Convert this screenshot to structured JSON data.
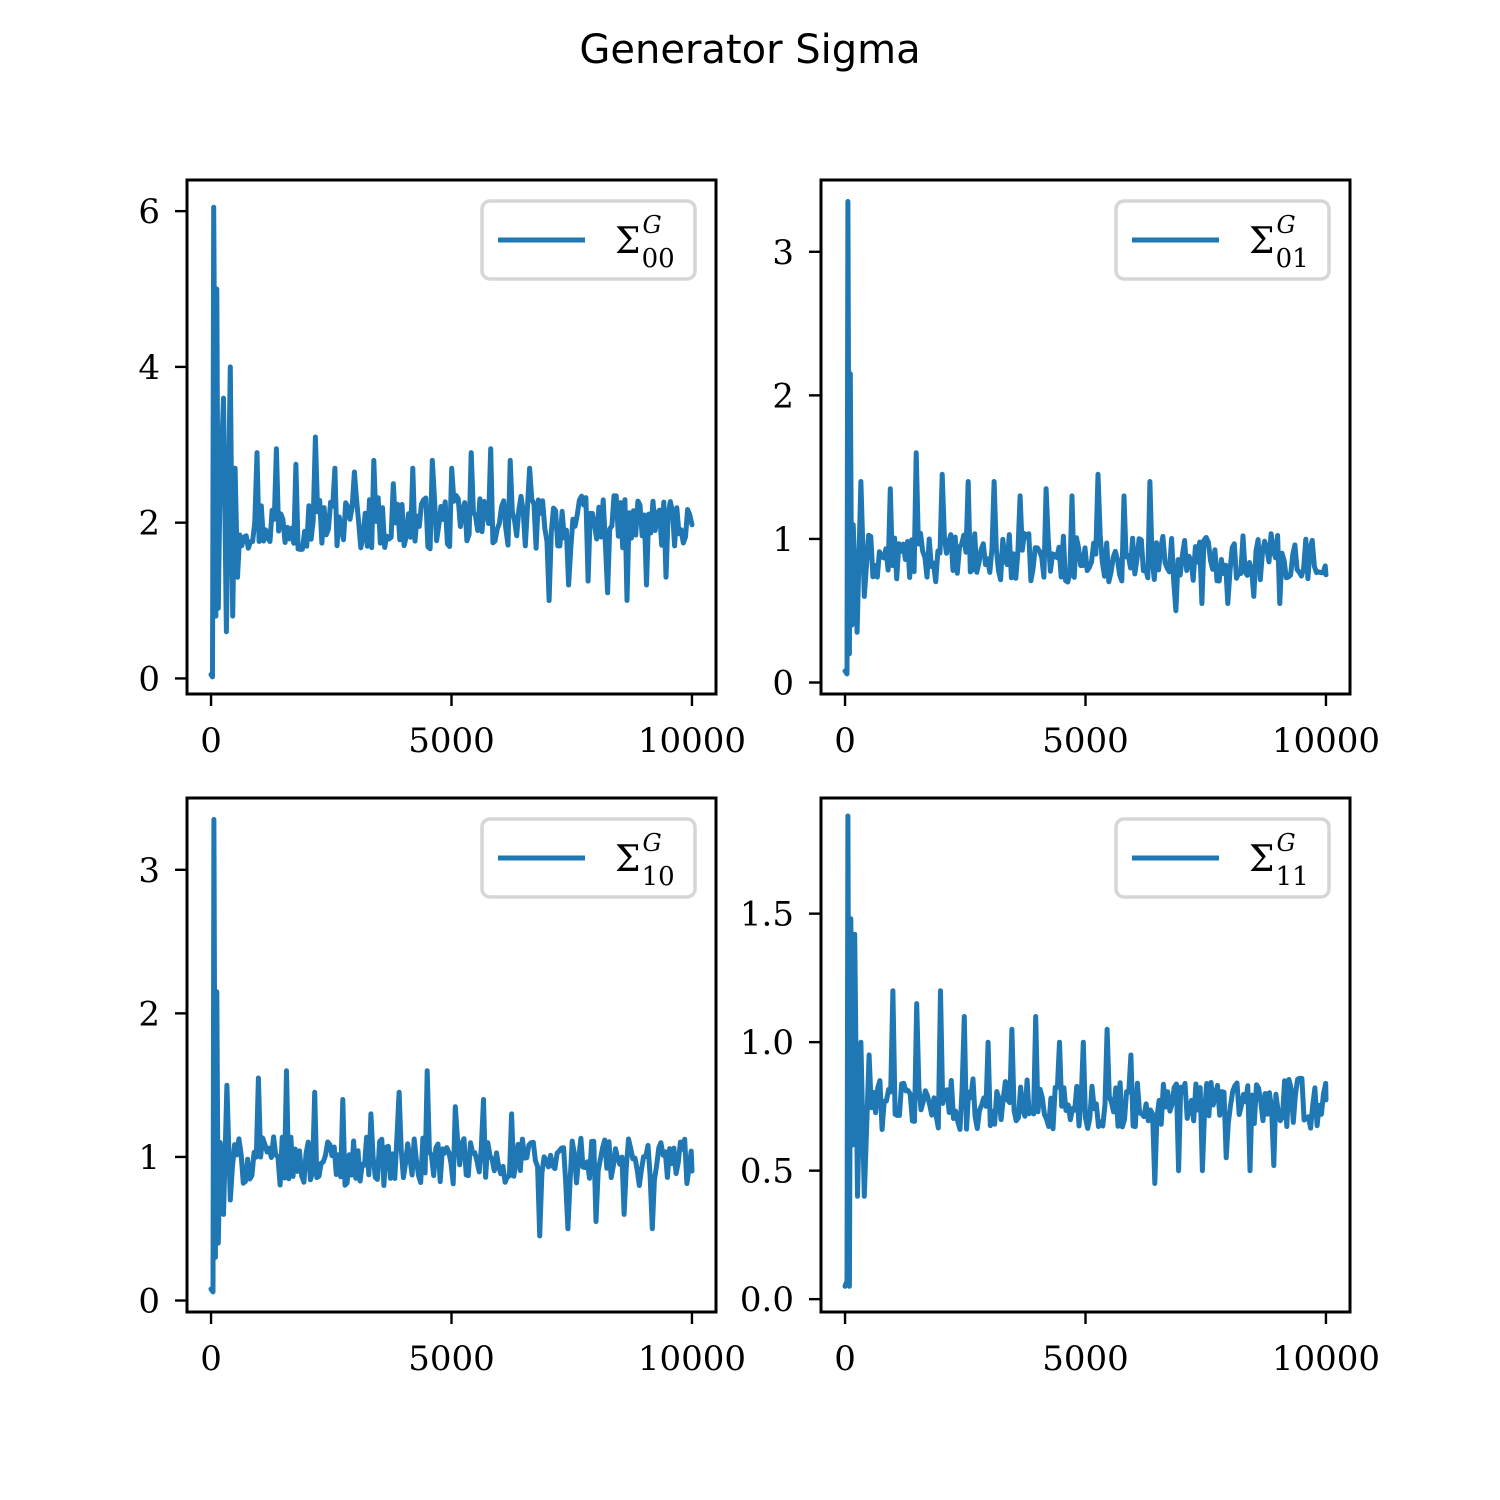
{
  "figure": {
    "title": "Generator Sigma",
    "colors": {
      "line": "#1f77b4"
    }
  },
  "chart_data": [
    {
      "type": "line",
      "legend": {
        "symbol": "Σ",
        "superscript": "G",
        "subscript": "00",
        "location": "upper-right"
      },
      "series": [
        {
          "name": "Σ_00^G"
        }
      ],
      "xlim": [
        -500,
        10500
      ],
      "ylim": [
        -0.2,
        6.4
      ],
      "xticks": [
        0,
        5000,
        10000
      ],
      "xtick_labels": [
        "0",
        "5000",
        "10000"
      ],
      "yticks": [
        0,
        2,
        4,
        6
      ],
      "ytick_labels": [
        "0",
        "2",
        "4",
        "6"
      ],
      "grid": false,
      "profile": {
        "x_start": 0,
        "x_end": 10000,
        "peaks": [
          [
            0,
            0.05
          ],
          [
            30,
            0.02
          ],
          [
            55,
            6.05
          ],
          [
            80,
            3.4
          ],
          [
            100,
            0.8
          ],
          [
            120,
            5.0
          ],
          [
            150,
            0.9
          ],
          [
            180,
            2.2
          ],
          [
            260,
            3.6
          ],
          [
            320,
            0.6
          ],
          [
            400,
            4.0
          ],
          [
            450,
            0.8
          ],
          [
            500,
            2.7
          ],
          [
            550,
            1.3
          ]
        ],
        "steady_center": 2.0,
        "steady_amplitude": 0.35,
        "spike_values": [
          2.9,
          2.95,
          2.75,
          3.1,
          2.7,
          2.65,
          2.8,
          2.5,
          2.7,
          2.8,
          2.7,
          2.9,
          2.95,
          2.8,
          2.7,
          1.0,
          1.2,
          1.25,
          1.1,
          1.0,
          1.2,
          1.3
        ]
      }
    },
    {
      "type": "line",
      "legend": {
        "symbol": "Σ",
        "superscript": "G",
        "subscript": "01",
        "location": "upper-right"
      },
      "series": [
        {
          "name": "Σ_01^G"
        }
      ],
      "xlim": [
        -500,
        10500
      ],
      "ylim": [
        -0.08,
        3.5
      ],
      "xticks": [
        0,
        5000,
        10000
      ],
      "xtick_labels": [
        "0",
        "5000",
        "10000"
      ],
      "yticks": [
        0,
        1,
        2,
        3
      ],
      "ytick_labels": [
        "0",
        "1",
        "2",
        "3"
      ],
      "grid": false,
      "profile": {
        "x_start": 0,
        "x_end": 10000,
        "peaks": [
          [
            0,
            0.08
          ],
          [
            40,
            0.06
          ],
          [
            60,
            3.35
          ],
          [
            90,
            0.2
          ],
          [
            110,
            2.15
          ],
          [
            140,
            0.4
          ],
          [
            170,
            1.1
          ],
          [
            250,
            0.35
          ],
          [
            330,
            1.4
          ],
          [
            400,
            0.6
          ]
        ],
        "steady_center": 0.87,
        "steady_amplitude": 0.17,
        "spike_values": [
          1.35,
          1.6,
          1.45,
          1.4,
          1.4,
          1.3,
          1.35,
          1.3,
          1.45,
          1.3,
          1.4,
          0.5,
          0.55,
          0.55,
          0.6,
          0.55
        ]
      }
    },
    {
      "type": "line",
      "legend": {
        "symbol": "Σ",
        "superscript": "G",
        "subscript": "10",
        "location": "upper-right"
      },
      "series": [
        {
          "name": "Σ_10^G"
        }
      ],
      "xlim": [
        -500,
        10500
      ],
      "ylim": [
        -0.08,
        3.5
      ],
      "xticks": [
        0,
        5000,
        10000
      ],
      "xtick_labels": [
        "0",
        "5000",
        "10000"
      ],
      "yticks": [
        0,
        1,
        2,
        3
      ],
      "ytick_labels": [
        "0",
        "1",
        "2",
        "3"
      ],
      "grid": false,
      "profile": {
        "x_start": 0,
        "x_end": 10000,
        "peaks": [
          [
            0,
            0.08
          ],
          [
            40,
            0.06
          ],
          [
            60,
            3.35
          ],
          [
            90,
            0.3
          ],
          [
            120,
            2.15
          ],
          [
            150,
            0.4
          ],
          [
            190,
            1.1
          ],
          [
            260,
            0.6
          ],
          [
            330,
            1.5
          ],
          [
            400,
            0.7
          ]
        ],
        "steady_center": 0.97,
        "steady_amplitude": 0.17,
        "spike_values": [
          1.55,
          1.6,
          1.45,
          1.4,
          1.3,
          1.45,
          1.6,
          1.35,
          1.4,
          1.3,
          0.45,
          0.5,
          0.55,
          0.6,
          0.5
        ]
      }
    },
    {
      "type": "line",
      "legend": {
        "symbol": "Σ",
        "superscript": "G",
        "subscript": "11",
        "location": "upper-right"
      },
      "series": [
        {
          "name": "Σ_11^G"
        }
      ],
      "xlim": [
        -500,
        10500
      ],
      "ylim": [
        -0.05,
        1.95
      ],
      "xticks": [
        0,
        5000,
        10000
      ],
      "xtick_labels": [
        "0",
        "5000",
        "10000"
      ],
      "yticks": [
        0.0,
        0.5,
        1.0,
        1.5
      ],
      "ytick_labels": [
        "0.0",
        "0.5",
        "1.0",
        "1.5"
      ],
      "grid": false,
      "profile": {
        "x_start": 0,
        "x_end": 10000,
        "peaks": [
          [
            0,
            0.05
          ],
          [
            40,
            0.07
          ],
          [
            60,
            1.88
          ],
          [
            90,
            0.05
          ],
          [
            120,
            1.48
          ],
          [
            160,
            0.6
          ],
          [
            200,
            1.42
          ],
          [
            260,
            0.4
          ],
          [
            330,
            1.0
          ],
          [
            400,
            0.4
          ],
          [
            500,
            0.95
          ]
        ],
        "steady_center": 0.76,
        "steady_amplitude": 0.1,
        "spike_values": [
          1.2,
          1.15,
          1.2,
          1.1,
          1.0,
          1.05,
          1.1,
          1.0,
          1.0,
          1.05,
          0.95,
          0.45,
          0.5,
          0.5,
          0.55,
          0.5,
          0.52
        ]
      }
    }
  ]
}
